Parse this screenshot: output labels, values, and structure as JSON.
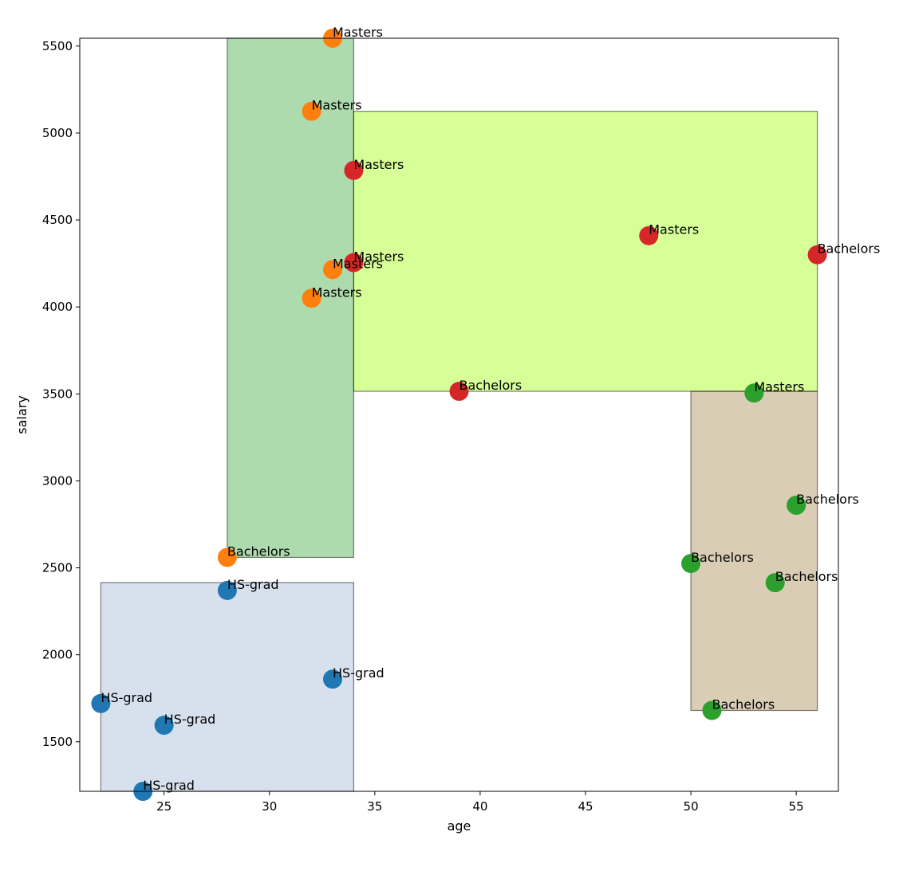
{
  "chart_data": {
    "type": "scatter",
    "title": "",
    "xlabel": "age",
    "ylabel": "salary",
    "xlim": [
      21,
      57
    ],
    "ylim": [
      1215,
      5545
    ],
    "xticks": [
      25,
      30,
      35,
      40,
      45,
      50,
      55
    ],
    "yticks": [
      1500,
      2000,
      2500,
      3000,
      3500,
      4000,
      4500,
      5000,
      5500
    ],
    "grid": false,
    "legend": "none",
    "regions": [
      {
        "x0": 22,
        "x1": 34,
        "y0": 1215,
        "y1": 2415,
        "fill": "#b0c4de"
      },
      {
        "x0": 28,
        "x1": 34,
        "y0": 2560,
        "y1": 5545,
        "fill": "#5cb85c"
      },
      {
        "x0": 34,
        "x1": 56,
        "y0": 3515,
        "y1": 5125,
        "fill": "#adff2f"
      },
      {
        "x0": 50,
        "x1": 56,
        "y0": 1680,
        "y1": 3515,
        "fill": "#b39b6b"
      }
    ],
    "series": [
      {
        "color": "#1f77b4",
        "points": [
          {
            "x": 22,
            "y": 1720,
            "label": "HS-grad"
          },
          {
            "x": 24,
            "y": 1215,
            "label": "HS-grad"
          },
          {
            "x": 25,
            "y": 1595,
            "label": "HS-grad"
          },
          {
            "x": 28,
            "y": 2370,
            "label": "HS-grad"
          },
          {
            "x": 33,
            "y": 1860,
            "label": "HS-grad"
          }
        ]
      },
      {
        "color": "#ff7f0e",
        "points": [
          {
            "x": 28,
            "y": 2560,
            "label": "Bachelors"
          },
          {
            "x": 32,
            "y": 4050,
            "label": "Masters"
          },
          {
            "x": 33,
            "y": 4215,
            "label": "Masters"
          },
          {
            "x": 32,
            "y": 5125,
            "label": "Masters"
          },
          {
            "x": 33,
            "y": 5545,
            "label": "Masters"
          }
        ]
      },
      {
        "color": "#d62728",
        "points": [
          {
            "x": 34,
            "y": 4785,
            "label": "Masters"
          },
          {
            "x": 34,
            "y": 4255,
            "label": "Masters"
          },
          {
            "x": 39,
            "y": 3515,
            "label": "Bachelors"
          },
          {
            "x": 48,
            "y": 4410,
            "label": "Masters"
          },
          {
            "x": 56,
            "y": 4300,
            "label": "Bachelors"
          }
        ]
      },
      {
        "color": "#2ca02c",
        "points": [
          {
            "x": 50,
            "y": 2525,
            "label": "Bachelors"
          },
          {
            "x": 51,
            "y": 1680,
            "label": "Bachelors"
          },
          {
            "x": 53,
            "y": 3505,
            "label": "Masters"
          },
          {
            "x": 54,
            "y": 2415,
            "label": "Bachelors"
          },
          {
            "x": 55,
            "y": 2860,
            "label": "Bachelors"
          }
        ]
      }
    ]
  }
}
